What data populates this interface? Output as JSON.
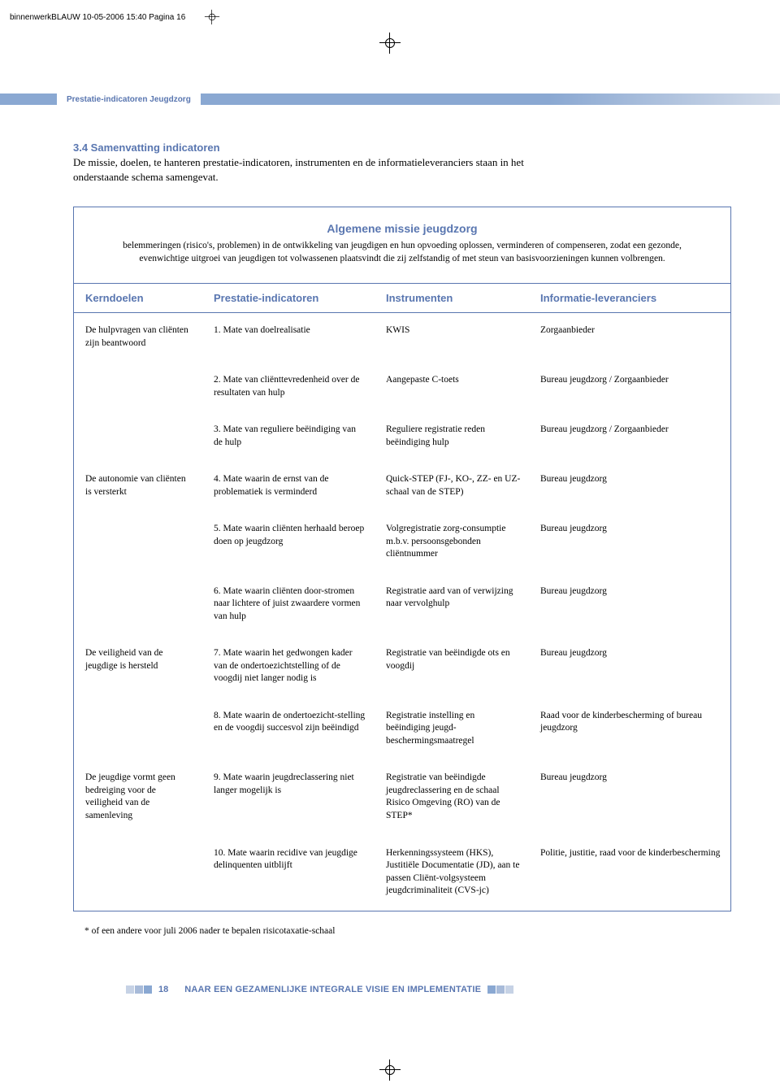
{
  "print_mark": "binnenwerkBLAUW  10-05-2006  15:40  Pagina 16",
  "running_header": "Prestatie-indicatoren Jeugdzorg",
  "section_heading": "3.4 Samenvatting indicatoren",
  "intro_text": "De missie, doelen, te hanteren prestatie-indicatoren, instrumenten en de informatieleveranciers staan in het onderstaande schema samengevat.",
  "mission": {
    "title": "Algemene missie jeugdzorg",
    "text": "belemmeringen (risico's, problemen) in de ontwikkeling van jeugdigen en hun opvoeding oplossen, verminderen of compenseren, zodat een gezonde, evenwichtige uitgroei van jeugdigen tot volwassenen plaatsvindt die zij zelfstandig of met steun van basisvoorzieningen kunnen volbrengen."
  },
  "headers": {
    "col1": "Kerndoelen",
    "col2": "Prestatie-indicatoren",
    "col3": "Instrumenten",
    "col4": "Informatie-leveranciers"
  },
  "rows": [
    {
      "c1": "De hulpvragen van cliënten zijn beantwoord",
      "c2": "1. Mate van doelrealisatie",
      "c3": "KWIS",
      "c4": "Zorgaanbieder"
    },
    {
      "c1": "",
      "c2": "2. Mate van cliënttevredenheid over de resultaten van hulp",
      "c3": "Aangepaste C-toets",
      "c4": "Bureau jeugdzorg / Zorgaanbieder"
    },
    {
      "c1": "",
      "c2": "3. Mate van reguliere beëindiging van de hulp",
      "c3": "Reguliere registratie reden beëindiging hulp",
      "c4": "Bureau jeugdzorg / Zorgaanbieder"
    },
    {
      "c1": "De autonomie van cliënten is versterkt",
      "c2": "4. Mate waarin de ernst van de problematiek is verminderd",
      "c3": "Quick-STEP (FJ-, KO-, ZZ- en UZ-schaal van de STEP)",
      "c4": "Bureau jeugdzorg"
    },
    {
      "c1": "",
      "c2": "5. Mate waarin cliënten herhaald beroep doen op jeugdzorg",
      "c3": "Volgregistratie zorg-consumptie m.b.v. persoonsgebonden cliëntnummer",
      "c4": "Bureau jeugdzorg"
    },
    {
      "c1": "",
      "c2": "6. Mate waarin cliënten door-stromen naar lichtere of juist zwaardere vormen van hulp",
      "c3": "Registratie aard van of verwijzing naar vervolghulp",
      "c4": "Bureau jeugdzorg"
    },
    {
      "c1": "De veiligheid van de jeugdige is hersteld",
      "c2": "7. Mate waarin het gedwongen kader van de ondertoezichtstelling of de voogdij niet langer nodig is",
      "c3": "Registratie van beëindigde ots en voogdij",
      "c4": "Bureau jeugdzorg"
    },
    {
      "c1": "",
      "c2": "8. Mate waarin de ondertoezicht-stelling en de voogdij succesvol zijn beëindigd",
      "c3": "Registratie instelling en beëindiging jeugd-beschermingsmaatregel",
      "c4": "Raad voor de kinderbescherming of bureau jeugdzorg"
    },
    {
      "c1": "De jeugdige vormt geen bedreiging voor de veiligheid van de samenleving",
      "c2": "9. Mate waarin jeugdreclassering niet langer mogelijk is",
      "c3": "Registratie van beëindigde jeugdreclassering en de schaal Risico Omgeving (RO) van de STEP*",
      "c4": "Bureau jeugdzorg"
    },
    {
      "c1": "",
      "c2": "10. Mate waarin recidive van jeugdige delinquenten uitblijft",
      "c3": "Herkenningssysteem (HKS), Justitiële Documentatie (JD), aan te passen Cliënt-volgsysteem jeugdcriminaliteit (CVS-jc)",
      "c4": "Politie, justitie, raad voor de kinderbescherming"
    }
  ],
  "footnote": "* of een andere voor juli 2006 nader te bepalen risicotaxatie-schaal",
  "footer": {
    "page": "18",
    "title": "NAAR EEN GEZAMENLIJKE INTEGRALE VISIE EN IMPLEMENTATIE"
  },
  "colors": {
    "blue": "#5976b0",
    "lightblue": "#8aa8d2",
    "fade": "#d2dbe9",
    "trail1": "#a8bbd9",
    "trail2": "#c6d2e5"
  }
}
